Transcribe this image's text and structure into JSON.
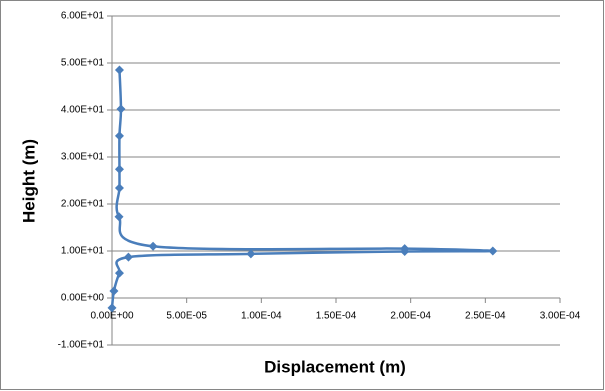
{
  "chart_data": {
    "type": "scatter",
    "line": true,
    "smooth": true,
    "marker": "diamond",
    "color": "#4a7ebb",
    "grid": true,
    "x_label": "Displacement  (m)",
    "y_label": "Height  (m)",
    "series": [
      {
        "x": [
          0,
          1.3e-06,
          5e-06,
          1.1e-05,
          9.3e-05,
          0.000196,
          0.000255,
          0.000196,
          2.75e-05,
          4.7e-06,
          5e-06,
          5e-06,
          5e-06,
          6e-06,
          5e-06
        ],
        "values": [
          -2.1,
          1.5,
          5.3,
          8.7,
          9.4,
          9.9,
          10.0,
          10.5,
          11.0,
          17.3,
          23.4,
          27.4,
          34.5,
          40.2,
          48.5
        ]
      }
    ],
    "xlim": [
      0,
      0.0003
    ],
    "xticks": [
      {
        "value": 0,
        "label": "0.00E+00"
      },
      {
        "value": 5e-05,
        "label": "5.00E-05"
      },
      {
        "value": 0.0001,
        "label": "1.00E-04"
      },
      {
        "value": 0.00015,
        "label": "1.50E-04"
      },
      {
        "value": 0.0002,
        "label": "2.00E-04"
      },
      {
        "value": 0.00025,
        "label": "2.50E-04"
      },
      {
        "value": 0.0003,
        "label": "3.00E-04"
      }
    ],
    "ylim": [
      -10,
      60
    ],
    "yticks": [
      {
        "value": -10,
        "label": "-1.00E+01"
      },
      {
        "value": 0,
        "label": "0.00E+00"
      },
      {
        "value": 10,
        "label": "1.00E+01"
      },
      {
        "value": 20,
        "label": "2.00E+01"
      },
      {
        "value": 30,
        "label": "3.00E+01"
      },
      {
        "value": 40,
        "label": "4.00E+01"
      },
      {
        "value": 50,
        "label": "5.00E+01"
      },
      {
        "value": 60,
        "label": "6.00E+01"
      }
    ]
  }
}
